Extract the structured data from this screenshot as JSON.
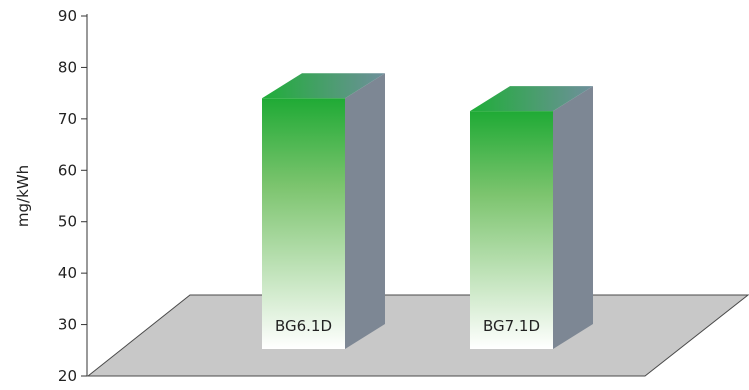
{
  "chart_data": {
    "type": "bar",
    "style": "3d",
    "ylabel": "mg/kWh",
    "ylim": [
      20,
      90
    ],
    "yticks": [
      20,
      30,
      40,
      50,
      60,
      70,
      80,
      90
    ],
    "grid": false,
    "categories": [
      "BG6.1D",
      "BG7.1D"
    ],
    "series": [
      {
        "values": [
          74,
          71.5
        ]
      }
    ],
    "colors": {
      "bar_front_top": "#1faa35",
      "bar_front_bottom": "#ffffff",
      "bar_side": "#7d8794",
      "bar_top_light": "#1fae38",
      "bar_top_dark": "#6f8f9c",
      "floor": "#c8c8c8",
      "floor_stroke": "#4a4a4a",
      "axis": "#333333"
    }
  }
}
